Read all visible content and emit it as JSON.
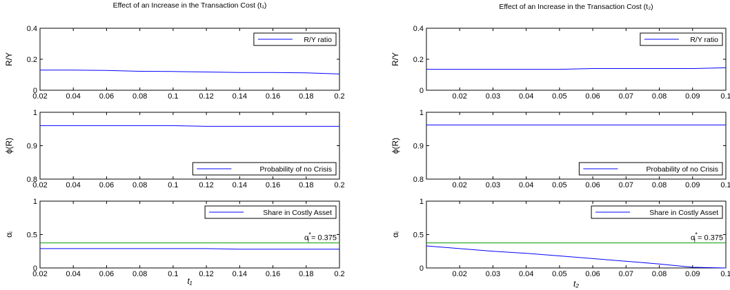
{
  "chart_data": [
    {
      "type": "line",
      "title": "Effect of an Increase in the Transaction Cost (t₁)",
      "xlabel": "t₁",
      "x_ticks": [
        "0.02",
        "0.04",
        "0.06",
        "0.08",
        "0.1",
        "0.12",
        "0.14",
        "0.16",
        "0.18",
        "0.2"
      ],
      "xlim": [
        0.02,
        0.2
      ],
      "panels": [
        {
          "ylabel": "R/Y",
          "ylim": [
            0,
            0.4
          ],
          "y_ticks": [
            "0",
            "0.2",
            "0.4"
          ],
          "legend_position": "top-right",
          "series": [
            {
              "name": "R/Y ratio",
              "color": "#0000ff",
              "x": [
                0.02,
                0.04,
                0.06,
                0.08,
                0.1,
                0.12,
                0.14,
                0.16,
                0.18,
                0.2
              ],
              "y": [
                0.13,
                0.13,
                0.128,
                0.122,
                0.121,
                0.118,
                0.114,
                0.114,
                0.112,
                0.105
              ]
            }
          ]
        },
        {
          "ylabel": "ϕ(R)",
          "ylim": [
            0.8,
            1
          ],
          "y_ticks": [
            "0.8",
            "0.9",
            "1"
          ],
          "legend_position": "bottom-right",
          "series": [
            {
              "name": "Probability of no Crisis",
              "color": "#0000ff",
              "x": [
                0.02,
                0.04,
                0.06,
                0.08,
                0.1,
                0.12,
                0.14,
                0.16,
                0.18,
                0.2
              ],
              "y": [
                0.96,
                0.96,
                0.96,
                0.96,
                0.96,
                0.958,
                0.958,
                0.958,
                0.958,
                0.958
              ]
            }
          ]
        },
        {
          "ylabel": "αᵢ",
          "ylim": [
            0,
            1
          ],
          "y_ticks": [
            "0",
            "0.5",
            "1"
          ],
          "legend_position": "top-right",
          "series": [
            {
              "name": "Share in Costly Asset",
              "color": "#0000ff",
              "x": [
                0.02,
                0.04,
                0.06,
                0.08,
                0.1,
                0.12,
                0.14,
                0.16,
                0.18,
                0.2
              ],
              "y": [
                0.29,
                0.29,
                0.29,
                0.29,
                0.29,
                0.29,
                0.28,
                0.28,
                0.28,
                0.28
              ]
            },
            {
              "name": "",
              "color": "#009900",
              "x": [
                0.02,
                0.2
              ],
              "y": [
                0.375,
                0.375
              ]
            }
          ],
          "annotation": {
            "prefix": "α",
            "sup": "*",
            "sub": "i",
            "rest": " = 0.375"
          }
        }
      ]
    },
    {
      "type": "line",
      "title": "Effect of an Increase in the Transaction Cost (t₂)",
      "xlabel": "t₂",
      "x_ticks": [
        "0.02",
        "0.03",
        "0.04",
        "0.05",
        "0.06",
        "0.07",
        "0.08",
        "0.09",
        "0.1"
      ],
      "xlim": [
        0.01,
        0.1
      ],
      "panels": [
        {
          "ylabel": "R/Y",
          "ylim": [
            0,
            0.4
          ],
          "y_ticks": [
            "0",
            "0.2",
            "0.4"
          ],
          "legend_position": "top-right",
          "series": [
            {
              "name": "R/Y ratio",
              "color": "#0000ff",
              "x": [
                0.01,
                0.02,
                0.03,
                0.04,
                0.05,
                0.06,
                0.07,
                0.08,
                0.09,
                0.1
              ],
              "y": [
                0.135,
                0.135,
                0.135,
                0.135,
                0.135,
                0.14,
                0.14,
                0.14,
                0.14,
                0.145
              ]
            }
          ]
        },
        {
          "ylabel": "ϕ(R)",
          "ylim": [
            0.8,
            1
          ],
          "y_ticks": [
            "0.8",
            "0.9",
            "1"
          ],
          "legend_position": "bottom-right",
          "series": [
            {
              "name": "Probability of no Crisis",
              "color": "#0000ff",
              "x": [
                0.01,
                0.02,
                0.03,
                0.04,
                0.05,
                0.06,
                0.07,
                0.08,
                0.09,
                0.1
              ],
              "y": [
                0.962,
                0.962,
                0.962,
                0.962,
                0.962,
                0.962,
                0.962,
                0.962,
                0.962,
                0.962
              ]
            }
          ]
        },
        {
          "ylabel": "αᵢ",
          "ylim": [
            0,
            1
          ],
          "y_ticks": [
            "0",
            "0.5",
            "1"
          ],
          "legend_position": "top-right",
          "series": [
            {
              "name": "Share in Costly Asset",
              "color": "#0000ff",
              "x": [
                0.01,
                0.02,
                0.03,
                0.04,
                0.05,
                0.06,
                0.07,
                0.08,
                0.09,
                0.1
              ],
              "y": [
                0.33,
                0.29,
                0.25,
                0.22,
                0.18,
                0.14,
                0.1,
                0.06,
                0.01,
                0.0
              ]
            },
            {
              "name": "",
              "color": "#009900",
              "x": [
                0.01,
                0.1
              ],
              "y": [
                0.375,
                0.375
              ]
            }
          ],
          "annotation": {
            "prefix": "α",
            "sup": "*",
            "sub": "i",
            "rest": " = 0.375"
          }
        }
      ]
    }
  ]
}
